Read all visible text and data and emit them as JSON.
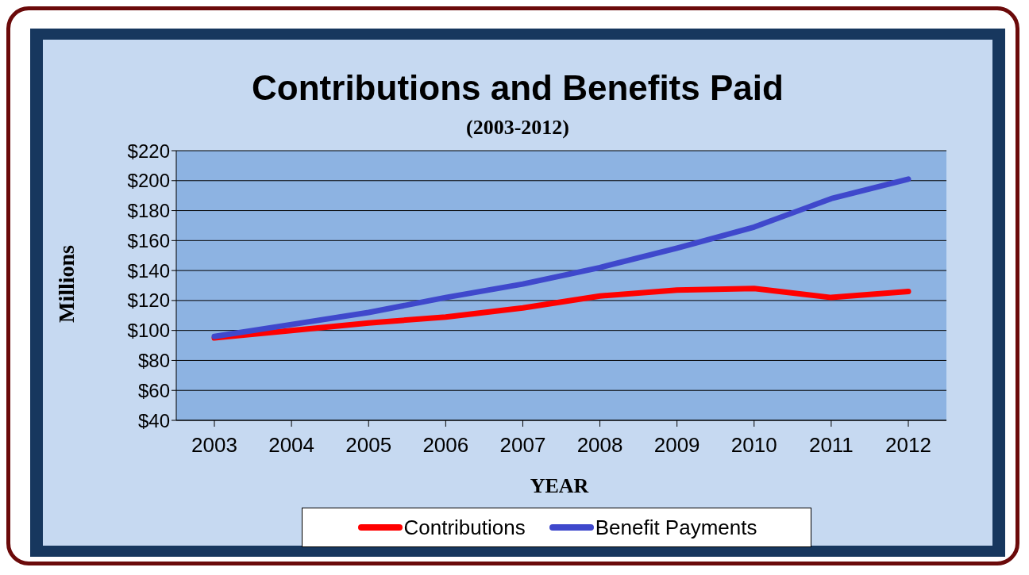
{
  "chart_data": {
    "type": "line",
    "title": "Contributions and Benefits Paid",
    "subtitle": "(2003-2012)",
    "xlabel": "YEAR",
    "ylabel": "Millions",
    "categories": [
      "2003",
      "2004",
      "2005",
      "2006",
      "2007",
      "2008",
      "2009",
      "2010",
      "2011",
      "2012"
    ],
    "series": [
      {
        "name": "Contributions",
        "color": "#ff0000",
        "values": [
          95,
          100,
          105,
          109,
          115,
          123,
          127,
          128,
          122,
          126
        ]
      },
      {
        "name": "Benefit Payments",
        "color": "#3f48cc",
        "values": [
          96,
          104,
          112,
          122,
          131,
          142,
          155,
          169,
          188,
          201
        ]
      }
    ],
    "ylim": [
      40,
      220
    ],
    "yticks": [
      {
        "value": 40,
        "label": "$40"
      },
      {
        "value": 60,
        "label": "$60"
      },
      {
        "value": 80,
        "label": "$80"
      },
      {
        "value": 100,
        "label": "$100"
      },
      {
        "value": 120,
        "label": "$120"
      },
      {
        "value": 140,
        "label": "$140"
      },
      {
        "value": 160,
        "label": "$160"
      },
      {
        "value": 180,
        "label": "$180"
      },
      {
        "value": 200,
        "label": "$200"
      },
      {
        "value": 220,
        "label": "$220"
      }
    ],
    "grid": "y",
    "legend": "bottom",
    "line_style": "solid"
  }
}
